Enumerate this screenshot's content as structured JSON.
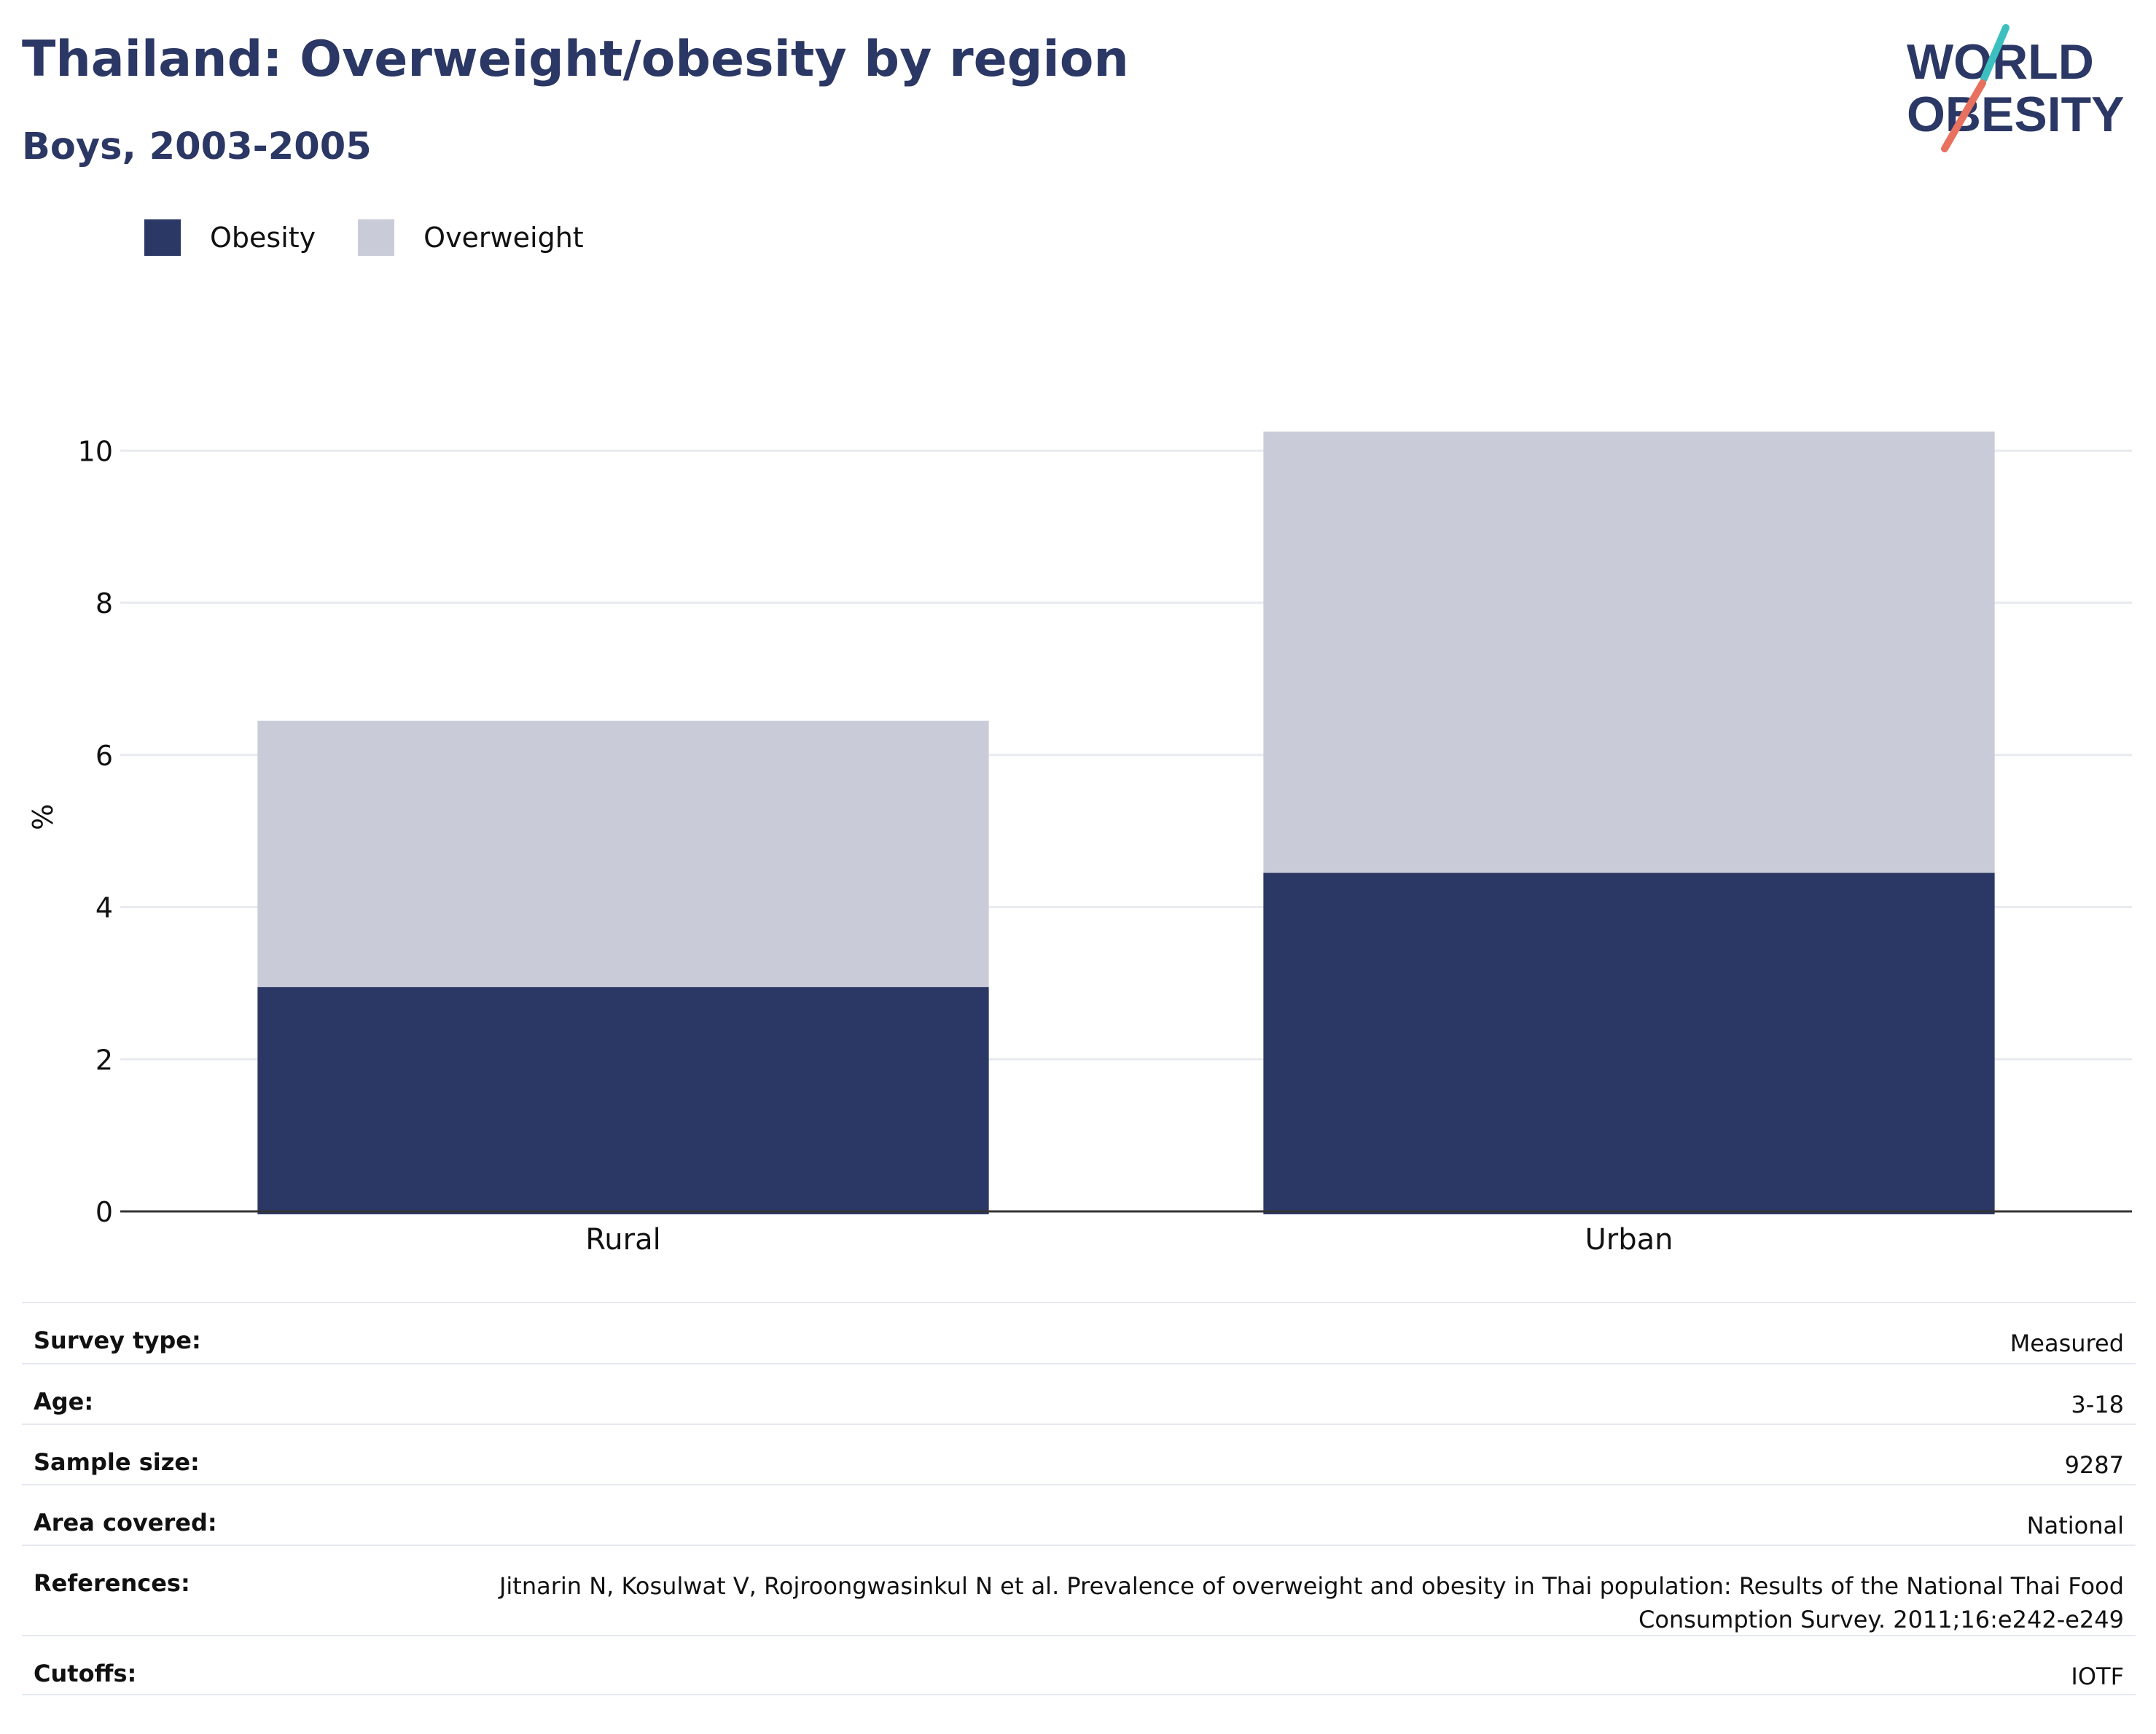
{
  "header": {
    "title": "Thailand: Overweight/obesity by region",
    "subtitle": "Boys, 2003-2005"
  },
  "logo": {
    "line1": "WORLD",
    "line2": "OBESITY",
    "text_color": "#2b3764",
    "accent_teal": "#3cbfbf",
    "accent_coral": "#e8705f"
  },
  "legend": [
    {
      "label": "Obesity",
      "color": "#2b3764"
    },
    {
      "label": "Overweight",
      "color": "#c9ccd8"
    }
  ],
  "chart_data": {
    "type": "bar",
    "stacked": true,
    "categories": [
      "Rural",
      "Urban"
    ],
    "series": [
      {
        "name": "Obesity",
        "color": "#2b3764",
        "values": [
          2.95,
          4.45
        ]
      },
      {
        "name": "Overweight",
        "color": "#c9ccd8",
        "values": [
          3.5,
          5.8
        ]
      }
    ],
    "ylabel": "%",
    "xlabel": "",
    "ylim": [
      0,
      10.75
    ],
    "yticks": [
      0,
      2,
      4,
      6,
      8,
      10
    ],
    "grid": true,
    "legend_position": "top-left"
  },
  "info": [
    {
      "key": "Survey type:",
      "value": "Measured"
    },
    {
      "key": "Age:",
      "value": "3-18"
    },
    {
      "key": "Sample size:",
      "value": "9287"
    },
    {
      "key": "Area covered:",
      "value": "National"
    },
    {
      "key": "References:",
      "value": "Jitnarin N, Kosulwat V, Rojroongwasinkul N et al. Prevalence of overweight and obesity in Thai population: Results of the National Thai Food Consumption Survey. 2011;16:e242-e249"
    },
    {
      "key": "Cutoffs:",
      "value": "IOTF"
    }
  ]
}
